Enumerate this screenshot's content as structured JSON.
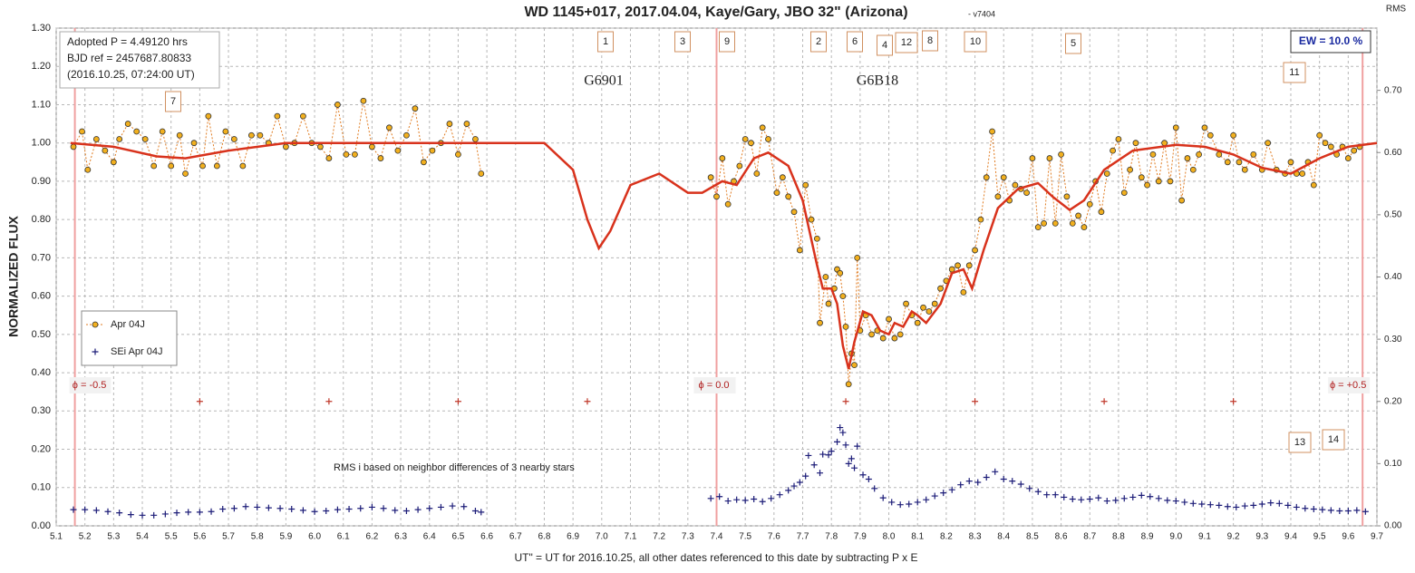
{
  "chart_data": {
    "type": "line",
    "title": "WD 1145+017, 2017.04.04, Kaye/Gary, JBO 32\" (Arizona)",
    "version": "- v7404",
    "y_label": "NORMALIZED FLUX",
    "y2_label": "RMS",
    "x_label": "UT\" = UT for 2016.10.25, all other dates referenced  to this date by subtracting  P x E",
    "info": [
      "Adopted P = 4.49120  hrs",
      "BJD ref = 2457687.80833",
      "(2016.10.25,  07:24:00  UT)"
    ],
    "ew": "EW = 10.0 %",
    "note": "RMS i based on neighbor differences of 3 nearby stars",
    "groups": [
      "G6901",
      "G6B18"
    ],
    "annotations": [
      "1",
      "3",
      "9",
      "2",
      "6",
      "4",
      "12",
      "8",
      "10",
      "5",
      "11",
      "7",
      "13",
      "14"
    ],
    "phase_lines": [
      {
        "x": 5.165,
        "label": "ϕ = -0.5"
      },
      {
        "x": 7.4,
        "label": "ϕ = 0.0"
      },
      {
        "x": 9.65,
        "label": "ϕ = +0.5"
      }
    ],
    "grid": true,
    "legend": "lower left",
    "xlim": [
      5.1,
      9.7
    ],
    "ylim": [
      0,
      1.3
    ],
    "y2lim": [
      0,
      0.8
    ],
    "xticks": [
      5.1,
      5.2,
      5.3,
      5.4,
      5.5,
      5.6,
      5.7,
      5.8,
      5.9,
      {
        "value": 6,
        "label": "6.0"
      },
      6.1,
      6.2,
      6.3,
      6.4,
      6.5,
      6.6,
      6.7,
      6.8,
      6.9,
      {
        "value": 7,
        "label": "7.0"
      },
      7.1,
      7.2,
      7.3,
      7.4,
      7.5,
      7.6,
      7.7,
      7.8,
      7.9,
      {
        "value": 8,
        "label": "8.0"
      },
      8.1,
      8.2,
      8.3,
      8.4,
      8.5,
      8.6,
      8.7,
      8.8,
      8.9,
      {
        "value": 9,
        "label": "9.0"
      },
      9.1,
      9.2,
      9.3,
      9.4,
      9.5,
      9.6,
      9.7
    ],
    "yticks": [
      {
        "value": 0,
        "label": "0.00"
      },
      {
        "value": 0.1,
        "label": "0.10"
      },
      {
        "value": 0.2,
        "label": "0.20"
      },
      {
        "value": 0.3,
        "label": "0.30"
      },
      {
        "value": 0.4,
        "label": "0.40"
      },
      {
        "value": 0.5,
        "label": "0.50"
      },
      {
        "value": 0.6,
        "label": "0.60"
      },
      {
        "value": 0.7,
        "label": "0.70"
      },
      {
        "value": 0.8,
        "label": "0.80"
      },
      {
        "value": 0.9,
        "label": "0.90"
      },
      {
        "value": 1,
        "label": "1.00"
      },
      {
        "value": 1.1,
        "label": "1.10"
      },
      {
        "value": 1.2,
        "label": "1.20"
      },
      {
        "value": 1.3,
        "label": "1.30"
      }
    ],
    "y2ticks": [
      {
        "value": 0,
        "label": "0.00"
      },
      {
        "value": 0.1,
        "label": "0.10"
      },
      {
        "value": 0.2,
        "label": "0.20"
      },
      {
        "value": 0.3,
        "label": "0.30"
      },
      {
        "value": 0.4,
        "label": "0.40"
      },
      {
        "value": 0.5,
        "label": "0.50"
      },
      {
        "value": 0.6,
        "label": "0.60"
      },
      {
        "value": 0.7,
        "label": "0.70"
      }
    ],
    "series": [
      {
        "name": "Apr 04J",
        "color": "#f2b01e",
        "line_color": "#e07b20",
        "marker": "circle",
        "line": "dotted",
        "x": [
          5.16,
          5.19,
          5.21,
          5.24,
          5.27,
          5.3,
          5.32,
          5.35,
          5.38,
          5.41,
          5.44,
          5.47,
          5.5,
          5.53,
          5.55,
          5.58,
          5.61,
          5.63,
          5.66,
          5.69,
          5.72,
          5.75,
          5.78,
          5.81,
          5.84,
          5.87,
          5.9,
          5.93,
          5.96,
          5.99,
          6.02,
          6.05,
          6.08,
          6.11,
          6.14,
          6.17,
          6.2,
          6.23,
          6.26,
          6.29,
          6.32,
          6.35,
          6.38,
          6.41,
          6.44,
          6.47,
          6.5,
          6.53,
          6.56,
          6.58,
          7.0,
          7.38,
          7.4,
          7.42,
          7.44,
          7.46,
          7.48,
          7.5,
          7.52,
          7.54,
          7.56,
          7.58,
          7.61,
          7.63,
          7.65,
          7.67,
          7.69,
          7.71,
          7.73,
          7.75,
          7.76,
          7.78,
          7.79,
          7.81,
          7.82,
          7.83,
          7.84,
          7.85,
          7.86,
          7.87,
          7.88,
          7.89,
          7.9,
          7.92,
          7.94,
          7.96,
          7.98,
          8.0,
          8.02,
          8.04,
          8.06,
          8.08,
          8.1,
          8.12,
          8.14,
          8.16,
          8.18,
          8.2,
          8.22,
          8.24,
          8.26,
          8.28,
          8.3,
          8.32,
          8.34,
          8.36,
          8.38,
          8.4,
          8.42,
          8.44,
          8.46,
          8.48,
          8.5,
          8.52,
          8.54,
          8.56,
          8.58,
          8.6,
          8.62,
          8.64,
          8.66,
          8.68,
          8.7,
          8.72,
          8.74,
          8.76,
          8.78,
          8.8,
          8.82,
          8.84,
          8.86,
          8.88,
          8.9,
          8.92,
          8.94,
          8.96,
          8.98,
          9.0,
          9.02,
          9.04,
          9.06,
          9.08,
          9.1,
          9.12,
          9.15,
          9.18,
          9.2,
          9.22,
          9.24,
          9.27,
          9.3,
          9.32,
          9.35,
          9.38,
          9.4,
          9.42,
          9.44,
          9.46,
          9.48,
          9.5,
          9.52,
          9.54,
          9.56,
          9.58,
          9.6,
          9.62,
          9.64
        ],
        "values": [
          0.99,
          1.03,
          0.93,
          1.01,
          0.98,
          0.95,
          1.01,
          1.05,
          1.03,
          1.01,
          0.94,
          1.03,
          0.94,
          1.02,
          0.92,
          1.0,
          0.94,
          1.07,
          0.94,
          1.03,
          1.01,
          0.94,
          1.02,
          1.02,
          1.0,
          1.07,
          0.99,
          1.0,
          1.07,
          1.0,
          0.99,
          0.96,
          1.1,
          0.97,
          0.97,
          1.11,
          0.99,
          0.96,
          1.04,
          0.98,
          1.02,
          1.09,
          0.95,
          0.98,
          1.0,
          1.05,
          0.97,
          1.05,
          1.01,
          0.92,
          null,
          0.91,
          0.86,
          0.96,
          0.84,
          0.9,
          0.94,
          1.01,
          1.0,
          0.92,
          1.04,
          1.01,
          0.87,
          0.91,
          0.86,
          0.82,
          0.72,
          0.89,
          0.8,
          0.75,
          0.53,
          0.65,
          0.58,
          0.62,
          0.67,
          0.66,
          0.6,
          0.52,
          0.37,
          0.45,
          0.42,
          0.7,
          0.51,
          0.55,
          0.5,
          0.51,
          0.49,
          0.54,
          0.49,
          0.5,
          0.58,
          0.55,
          0.53,
          0.57,
          0.56,
          0.58,
          0.62,
          0.64,
          0.67,
          0.68,
          0.61,
          0.68,
          0.72,
          0.8,
          0.91,
          1.03,
          0.86,
          0.91,
          0.85,
          0.89,
          0.88,
          0.87,
          0.96,
          0.78,
          0.79,
          0.96,
          0.79,
          0.97,
          0.86,
          0.79,
          0.81,
          0.78,
          0.84,
          0.9,
          0.82,
          0.92,
          0.98,
          1.01,
          0.87,
          0.93,
          1.0,
          0.91,
          0.89,
          0.97,
          0.9,
          1.0,
          0.9,
          1.04,
          0.85,
          0.96,
          0.93,
          0.97,
          1.04,
          1.02,
          0.97,
          0.95,
          1.02,
          0.95,
          0.93,
          0.97,
          0.93,
          1.0,
          0.93,
          0.92,
          0.95,
          0.92,
          0.92,
          0.95,
          0.89,
          1.02,
          1.0,
          0.99,
          0.97,
          0.99,
          0.96,
          0.98,
          0.99
        ]
      },
      {
        "color": "#d8321c",
        "marker": "none",
        "line": "solid",
        "x": [
          5.15,
          5.3,
          5.45,
          5.55,
          5.7,
          5.9,
          6.6,
          6.8,
          6.9,
          6.95,
          6.99,
          7.03,
          7.1,
          7.2,
          7.3,
          7.35,
          7.42,
          7.47,
          7.53,
          7.58,
          7.65,
          7.7,
          7.75,
          7.77,
          7.8,
          7.82,
          7.84,
          7.86,
          7.88,
          7.91,
          7.94,
          7.97,
          8.0,
          8.02,
          8.05,
          8.08,
          8.1,
          8.13,
          8.18,
          8.22,
          8.26,
          8.29,
          8.33,
          8.38,
          8.45,
          8.52,
          8.57,
          8.63,
          8.68,
          8.75,
          8.85,
          9.0,
          9.1,
          9.2,
          9.3,
          9.4,
          9.5,
          9.6,
          9.7
        ],
        "values": [
          1.0,
          0.99,
          0.965,
          0.96,
          0.98,
          1.0,
          1.0,
          1.0,
          0.93,
          0.8,
          0.725,
          0.77,
          0.89,
          0.92,
          0.87,
          0.87,
          0.9,
          0.89,
          0.96,
          0.975,
          0.94,
          0.85,
          0.68,
          0.62,
          0.62,
          0.58,
          0.47,
          0.41,
          0.48,
          0.56,
          0.55,
          0.51,
          0.5,
          0.53,
          0.52,
          0.56,
          0.55,
          0.53,
          0.58,
          0.66,
          0.67,
          0.62,
          0.72,
          0.83,
          0.88,
          0.895,
          0.86,
          0.825,
          0.85,
          0.93,
          0.98,
          0.995,
          0.99,
          0.97,
          0.935,
          0.92,
          0.96,
          0.99,
          1.0
        ]
      },
      {
        "color": "#c0392b",
        "marker": "plus",
        "line": "none",
        "x": [
          5.6,
          6.05,
          6.5,
          6.95,
          7.85,
          8.3,
          8.75,
          9.2
        ],
        "values": [
          0.325,
          0.325,
          0.325,
          0.325,
          0.325,
          0.325,
          0.325,
          0.325
        ]
      },
      {
        "name": "SEi Apr 04J",
        "color": "#1c1c78",
        "marker": "plus",
        "line": "none",
        "axis": "y2",
        "x": [
          5.16,
          5.2,
          5.24,
          5.28,
          5.32,
          5.36,
          5.4,
          5.44,
          5.48,
          5.52,
          5.56,
          5.6,
          5.64,
          5.68,
          5.72,
          5.76,
          5.8,
          5.84,
          5.88,
          5.92,
          5.96,
          6.0,
          6.04,
          6.08,
          6.12,
          6.16,
          6.2,
          6.24,
          6.28,
          6.32,
          6.36,
          6.4,
          6.44,
          6.48,
          6.52,
          6.56,
          6.58,
          7.38,
          7.41,
          7.44,
          7.47,
          7.5,
          7.53,
          7.56,
          7.59,
          7.62,
          7.65,
          7.67,
          7.69,
          7.71,
          7.72,
          7.74,
          7.76,
          7.77,
          7.79,
          7.8,
          7.82,
          7.83,
          7.84,
          7.85,
          7.86,
          7.87,
          7.88,
          7.89,
          7.91,
          7.93,
          7.95,
          7.98,
          8.01,
          8.04,
          8.07,
          8.1,
          8.13,
          8.16,
          8.19,
          8.22,
          8.25,
          8.28,
          8.31,
          8.34,
          8.37,
          8.4,
          8.43,
          8.46,
          8.49,
          8.52,
          8.55,
          8.58,
          8.61,
          8.64,
          8.67,
          8.7,
          8.73,
          8.76,
          8.79,
          8.82,
          8.85,
          8.88,
          8.91,
          8.94,
          8.97,
          9.0,
          9.03,
          9.06,
          9.09,
          9.12,
          9.15,
          9.18,
          9.21,
          9.24,
          9.27,
          9.3,
          9.33,
          9.36,
          9.39,
          9.42,
          9.45,
          9.48,
          9.51,
          9.54,
          9.57,
          9.6,
          9.63,
          9.66
        ],
        "values": [
          0.026,
          0.026,
          0.025,
          0.023,
          0.021,
          0.018,
          0.017,
          0.017,
          0.019,
          0.021,
          0.022,
          0.022,
          0.023,
          0.027,
          0.028,
          0.031,
          0.03,
          0.029,
          0.028,
          0.027,
          0.025,
          0.023,
          0.024,
          0.026,
          0.027,
          0.028,
          0.03,
          0.028,
          0.025,
          0.024,
          0.026,
          0.028,
          0.03,
          0.032,
          0.031,
          0.024,
          0.022,
          0.044,
          0.047,
          0.04,
          0.042,
          0.041,
          0.043,
          0.039,
          0.044,
          0.05,
          0.057,
          0.064,
          0.07,
          0.08,
          0.113,
          0.098,
          0.085,
          0.115,
          0.114,
          0.12,
          0.135,
          0.158,
          0.15,
          0.13,
          0.1,
          0.108,
          0.093,
          0.128,
          0.082,
          0.075,
          0.06,
          0.045,
          0.038,
          0.034,
          0.035,
          0.038,
          0.042,
          0.048,
          0.053,
          0.058,
          0.066,
          0.072,
          0.07,
          0.078,
          0.087,
          0.075,
          0.072,
          0.067,
          0.06,
          0.055,
          0.05,
          0.05,
          0.046,
          0.043,
          0.042,
          0.043,
          0.045,
          0.04,
          0.041,
          0.044,
          0.046,
          0.049,
          0.047,
          0.044,
          0.041,
          0.04,
          0.038,
          0.036,
          0.035,
          0.034,
          0.033,
          0.031,
          0.03,
          0.032,
          0.033,
          0.035,
          0.037,
          0.036,
          0.033,
          0.03,
          0.028,
          0.027,
          0.026,
          0.025,
          0.024,
          0.024,
          0.025,
          0.023
        ]
      }
    ]
  }
}
